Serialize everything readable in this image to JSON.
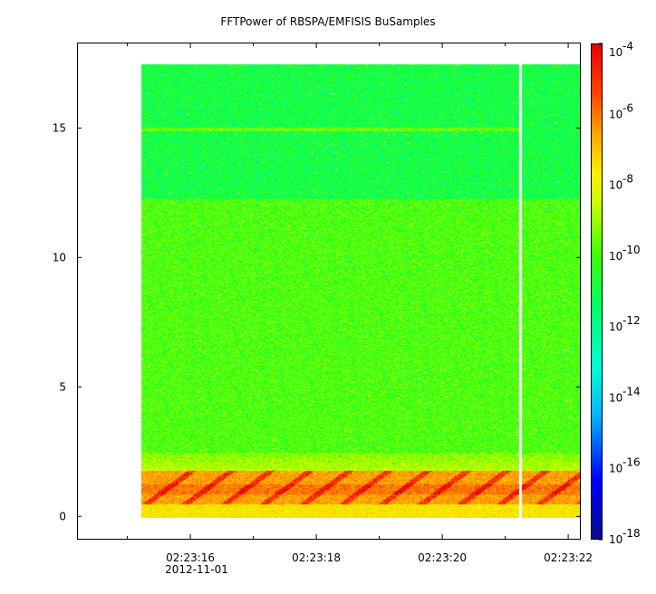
{
  "title": "FFTPower of RBSPA/EMFISIS  BuSamples",
  "chart_data": {
    "type": "heatmap",
    "title": "FFTPower of RBSPA/EMFISIS  BuSamples",
    "xlabel": "",
    "ylabel": "",
    "x_axis": {
      "type": "time",
      "range": [
        "02:23:14.2",
        "02:23:22.2"
      ],
      "tick_labels": [
        "02:23:16",
        "02:23:18",
        "02:23:20",
        "02:23:22"
      ],
      "tick_seconds": [
        16,
        18,
        20,
        22
      ],
      "minor_tick_seconds": [
        15,
        17,
        19,
        21
      ],
      "date_label": "2012-11-01"
    },
    "y_axis": {
      "range": [
        -0.9,
        18.3
      ],
      "ticks": [
        0,
        5,
        10,
        15
      ],
      "tick_labels": [
        "0",
        "5",
        "10",
        "15"
      ]
    },
    "data_extent": {
      "x_start": "02:23:15.2",
      "x_end": "02:23:22.2",
      "y_min": 0,
      "y_max": 17.5
    },
    "data_gap": {
      "start": "02:23:21.2",
      "end": "02:23:21.25"
    },
    "bands": [
      {
        "y_from": 0,
        "y_to": 0.5,
        "level": "high (yellow)"
      },
      {
        "y_from": 0.5,
        "y_to": 1.8,
        "level": "highest (orange-red), rising chorus elements"
      },
      {
        "y_from": 1.8,
        "y_to": 2.5,
        "level": "elevated (yellow-green)"
      },
      {
        "y_from": 2.5,
        "y_to": 12.3,
        "level": "background (green)"
      },
      {
        "y_from": 12.3,
        "y_to": 17.5,
        "level": "low (green-cyan)"
      },
      {
        "y_from": 14.95,
        "y_to": 15.05,
        "level": "narrow line (green)"
      }
    ],
    "colorbar": {
      "scale": "log",
      "min": 1e-18,
      "max": 0.0001,
      "tick_labels": [
        "10",
        "10",
        "10",
        "10",
        "10",
        "10",
        "10",
        "10"
      ],
      "tick_exponents": [
        "-4",
        "-6",
        "-8",
        "-10",
        "-12",
        "-14",
        "-16",
        "-18"
      ],
      "tick_values": [
        0.0001,
        1e-06,
        1e-08,
        1e-10,
        1e-12,
        1e-14,
        1e-16,
        1e-18
      ]
    },
    "colormap": [
      "#0a0a8c",
      "#0000ff",
      "#00b4ff",
      "#00ffd0",
      "#00ff66",
      "#44ff00",
      "#c8ff00",
      "#ffee00",
      "#ffa500",
      "#ff4400",
      "#e60000"
    ]
  }
}
